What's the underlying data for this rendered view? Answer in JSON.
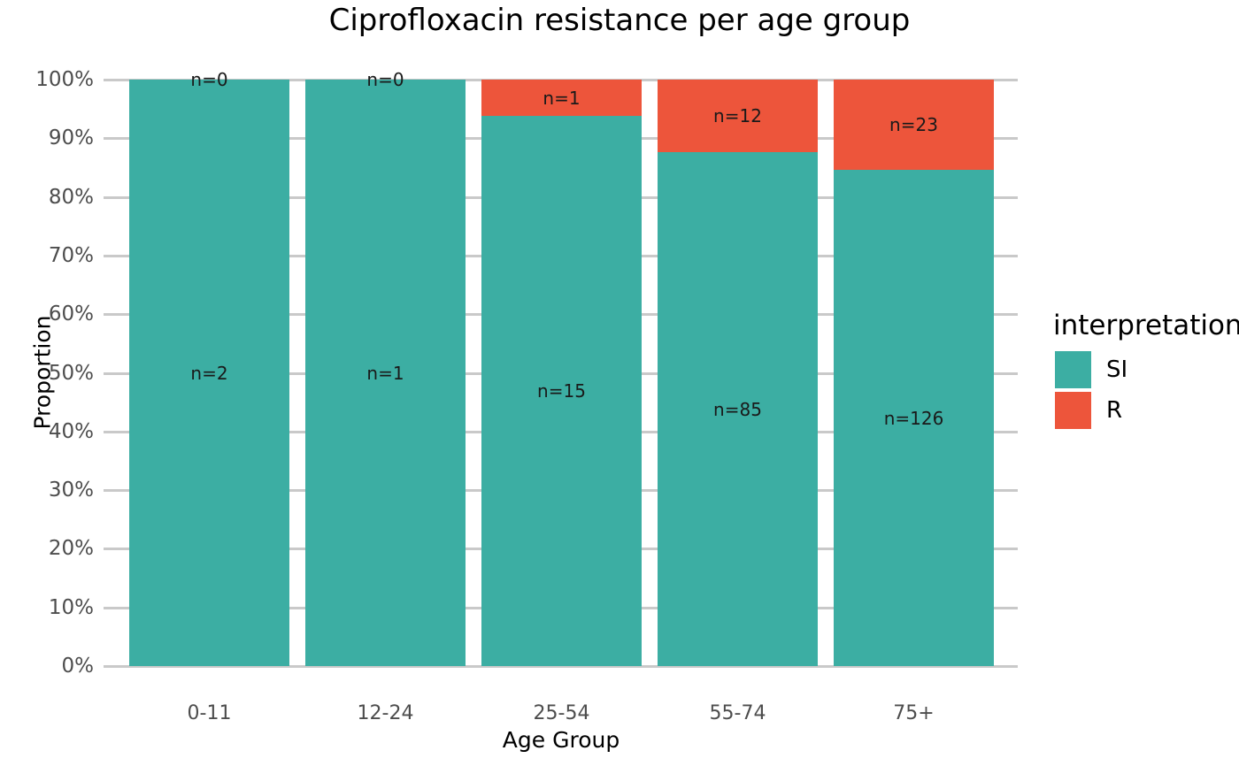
{
  "chart_data": {
    "type": "bar",
    "stacked": true,
    "normalized": "percent",
    "title": "Ciprofloxacin resistance per age group",
    "xlabel": "Age Group",
    "ylabel": "Proportion",
    "categories": [
      "0-11",
      "12-24",
      "25-54",
      "55-74",
      "75+"
    ],
    "series": [
      {
        "name": "SI",
        "color": "#3CAEA3",
        "values": [
          2,
          1,
          15,
          85,
          126
        ],
        "labels": [
          "n=2",
          "n=1",
          "n=15",
          "n=85",
          "n=126"
        ]
      },
      {
        "name": "R",
        "color": "#ED553B",
        "values": [
          0,
          0,
          1,
          12,
          23
        ],
        "labels": [
          "n=0",
          "n=0",
          "n=1",
          "n=12",
          "n=23"
        ]
      }
    ],
    "y_ticks": [
      "0%",
      "10%",
      "20%",
      "30%",
      "40%",
      "50%",
      "60%",
      "70%",
      "80%",
      "90%",
      "100%"
    ],
    "ylim": [
      0,
      100
    ],
    "grid": "horizontal",
    "grid_color": "#C9C9C9",
    "tick_text_color": "#4D4D4D",
    "legend": {
      "title": "interpretation",
      "position": "right",
      "entries": [
        {
          "label": "SI",
          "color": "#3CAEA3"
        },
        {
          "label": "R",
          "color": "#ED553B"
        }
      ]
    }
  }
}
